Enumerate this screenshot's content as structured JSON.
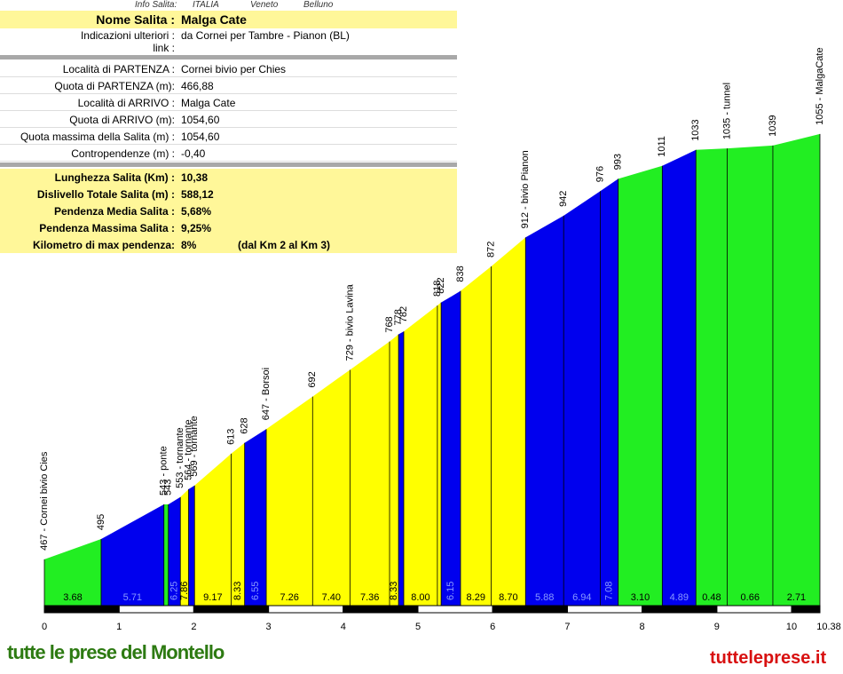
{
  "info": {
    "header": [
      "Info Salita:",
      "ITALIA",
      "Veneto",
      "Belluno"
    ],
    "rows": [
      [
        "Nome Salita :",
        "Malga Cate"
      ],
      [
        "Indicazioni ulteriori :",
        "da Cornei per Tambre - Pianon (BL)"
      ],
      [
        "link :",
        ""
      ],
      [
        "Località di PARTENZA :",
        "Cornei bivio per Chies"
      ],
      [
        "Quota di PARTENZA (m):",
        "466,88"
      ],
      [
        "Località di ARRIVO :",
        "Malga Cate"
      ],
      [
        "Quota di ARRIVO (m):",
        "1054,60"
      ],
      [
        "Quota massima della Salita (m) :",
        "1054,60"
      ],
      [
        "Contropendenze (m) :",
        "-0,40"
      ],
      [
        "Lunghezza Salita (Km) :",
        "10,38"
      ],
      [
        "Dislivello Totale Salita (m) :",
        "588,12"
      ],
      [
        "Pendenza Media Salita :",
        "5,68%"
      ],
      [
        "Pendenza Massima Salita :",
        "9,25%"
      ],
      [
        "Kilometro di max pendenza:",
        "8%",
        "(dal Km 2 al Km 3)"
      ]
    ]
  },
  "logos": {
    "left": "tutte le prese del Montello",
    "right": "tutteleprese.it"
  },
  "chart_data": {
    "type": "area",
    "x": [
      0,
      0.76,
      1.6,
      1.66,
      1.82,
      1.93,
      2.01,
      2.5,
      2.68,
      2.97,
      3.59,
      4.09,
      4.62,
      4.74,
      4.81,
      5.26,
      5.31,
      5.57,
      5.98,
      6.44,
      6.95,
      7.44,
      7.68,
      8.27,
      8.72,
      9.14,
      9.75,
      10.38
    ],
    "values": [
      467,
      495,
      543,
      543,
      553,
      564,
      569,
      613,
      628,
      647,
      692,
      729,
      768,
      778,
      782,
      818,
      822,
      838,
      872,
      912,
      942,
      976,
      993,
      1011,
      1033,
      1035,
      1039,
      1055
    ],
    "labels": [
      "467 - Cornei bivio Cies",
      "495",
      "543 - ponte",
      "543",
      "553 - tornante",
      "564 - tornante",
      "569 - tornante",
      "613",
      "628",
      "647 - Borsoi",
      "692",
      "729 - bivio Lavina",
      "768",
      "778",
      "782",
      "818",
      "822",
      "838",
      "872",
      "912 - bivio Pianon",
      "942",
      "976",
      "993",
      "1011",
      "1033",
      "1035 - tunnel",
      "1039",
      "1055 - MalgaCate"
    ],
    "segments": [
      {
        "color": "#22ee22",
        "grade": "3.68"
      },
      {
        "color": "#0000ee",
        "grade": "5.71"
      },
      {
        "color": "#22ee22",
        "grade": null
      },
      {
        "color": "#0000ee",
        "grade": "6.25"
      },
      {
        "color": "#ffff00",
        "grade": "7.86"
      },
      {
        "color": "#0000ee",
        "grade": null
      },
      {
        "color": "#ffff00",
        "grade": "9.17"
      },
      {
        "color": "#ffff00",
        "grade": "8.33"
      },
      {
        "color": "#0000ee",
        "grade": "6.55"
      },
      {
        "color": "#ffff00",
        "grade": "7.26"
      },
      {
        "color": "#ffff00",
        "grade": "7.40"
      },
      {
        "color": "#ffff00",
        "grade": "7.36"
      },
      {
        "color": "#ffff00",
        "grade": "8.33"
      },
      {
        "color": "#0000ee",
        "grade": null
      },
      {
        "color": "#ffff00",
        "grade": "8.00"
      },
      {
        "color": "#ffff00",
        "grade": null
      },
      {
        "color": "#0000ee",
        "grade": "6.15"
      },
      {
        "color": "#ffff00",
        "grade": "8.29"
      },
      {
        "color": "#ffff00",
        "grade": "8.70"
      },
      {
        "color": "#0000ee",
        "grade": "5.88"
      },
      {
        "color": "#0000ee",
        "grade": "6.94"
      },
      {
        "color": "#0000ee",
        "grade": "7.08"
      },
      {
        "color": "#22ee22",
        "grade": "3.10"
      },
      {
        "color": "#0000ee",
        "grade": "4.89"
      },
      {
        "color": "#22ee22",
        "grade": "0.48"
      },
      {
        "color": "#22ee22",
        "grade": "0.66"
      },
      {
        "color": "#22ee22",
        "grade": "2.71"
      }
    ],
    "xlim": [
      0,
      10.38
    ],
    "xticks": [
      0,
      1,
      2,
      3,
      4,
      5,
      6,
      7,
      8,
      9,
      10,
      10.38
    ],
    "ylim": [
      403,
      1088
    ]
  }
}
